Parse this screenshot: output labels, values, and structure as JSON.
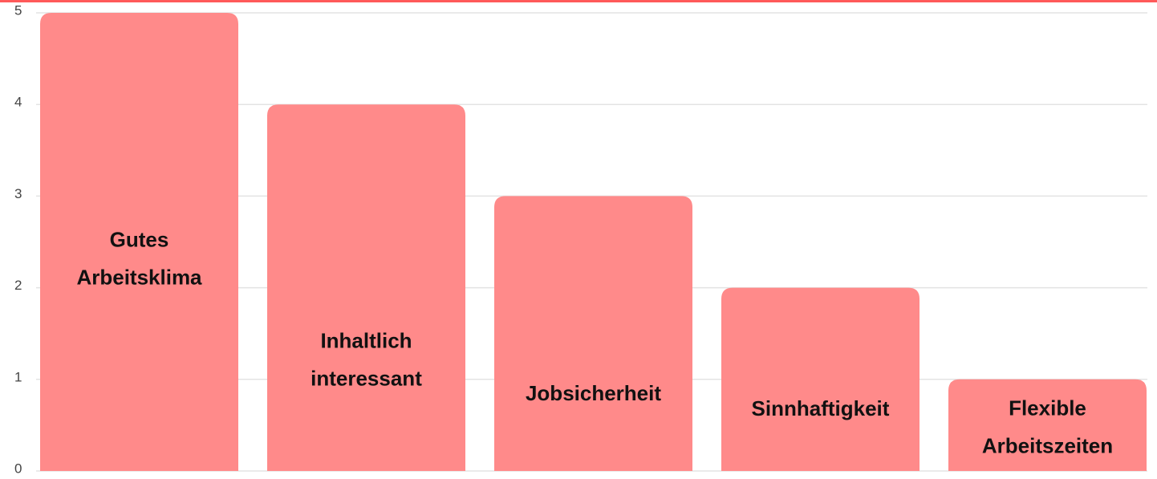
{
  "chart_data": {
    "type": "bar",
    "categories": [
      "Gutes Arbeitsklima",
      "Inhaltlich interessant",
      "Jobsicherheit",
      "Sinnhaftigkeit",
      "Flexible Arbeitszeiten"
    ],
    "values": [
      5,
      4,
      3,
      2,
      1
    ],
    "color": "#ff8a8a",
    "ylim": [
      0,
      5
    ],
    "yticks": [
      0,
      1,
      2,
      3,
      4,
      5
    ],
    "grid": true
  }
}
